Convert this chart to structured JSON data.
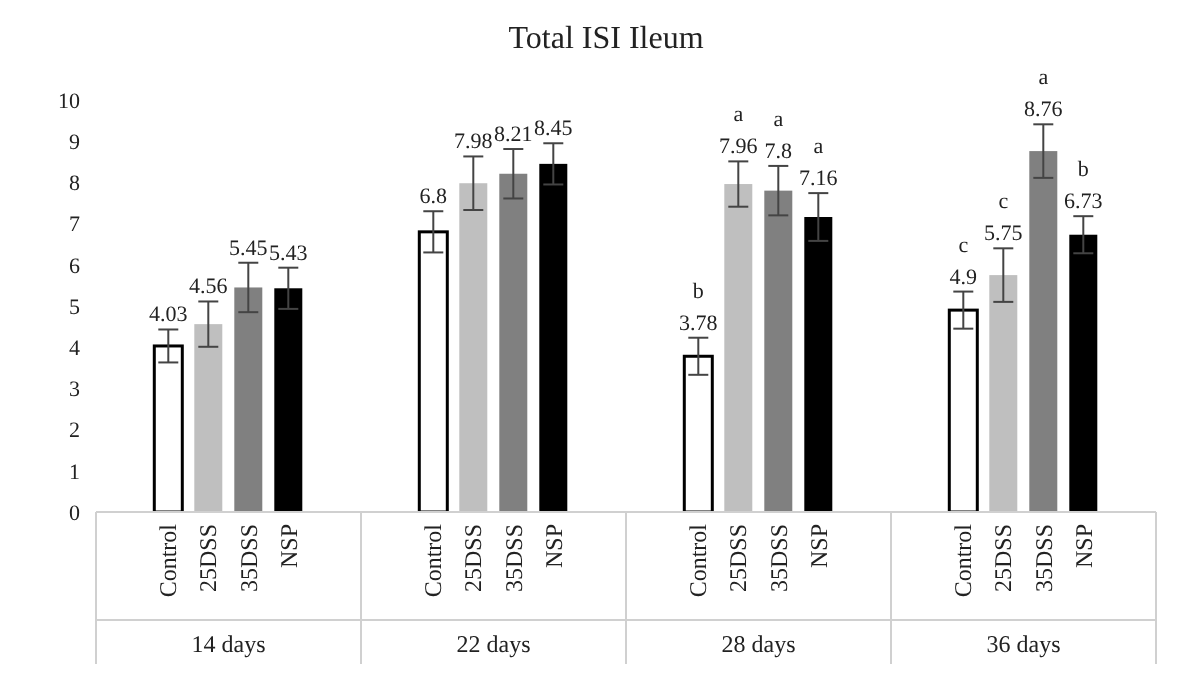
{
  "chart_data": {
    "type": "bar",
    "title": "Total ISI Ileum",
    "categories": [
      "14 days",
      "22 days",
      "28 days",
      "36 days"
    ],
    "series": [
      {
        "name": "Control",
        "color": "#ffffff",
        "values": [
          4.03,
          6.8,
          3.78,
          4.9
        ],
        "errors": [
          0.4,
          0.5,
          0.45,
          0.45
        ]
      },
      {
        "name": "25DSS",
        "color": "#bfbfbf",
        "values": [
          4.56,
          7.98,
          7.96,
          5.75
        ],
        "errors": [
          0.55,
          0.65,
          0.55,
          0.65
        ]
      },
      {
        "name": "35DSS",
        "color": "#808080",
        "values": [
          5.45,
          8.21,
          7.8,
          8.76
        ],
        "errors": [
          0.6,
          0.6,
          0.6,
          0.65
        ]
      },
      {
        "name": "NSP",
        "color": "#000000",
        "values": [
          5.43,
          8.45,
          7.16,
          6.73
        ],
        "errors": [
          0.5,
          0.5,
          0.58,
          0.45
        ]
      }
    ],
    "ylim": [
      0,
      10
    ],
    "yticks": [
      0,
      1,
      2,
      3,
      4,
      5,
      6,
      7,
      8,
      9,
      10
    ],
    "grid": false,
    "legend": false,
    "data_labels": true,
    "annotations": [
      "b",
      "a",
      "a",
      "a",
      "c",
      "c",
      "a",
      "b"
    ]
  }
}
